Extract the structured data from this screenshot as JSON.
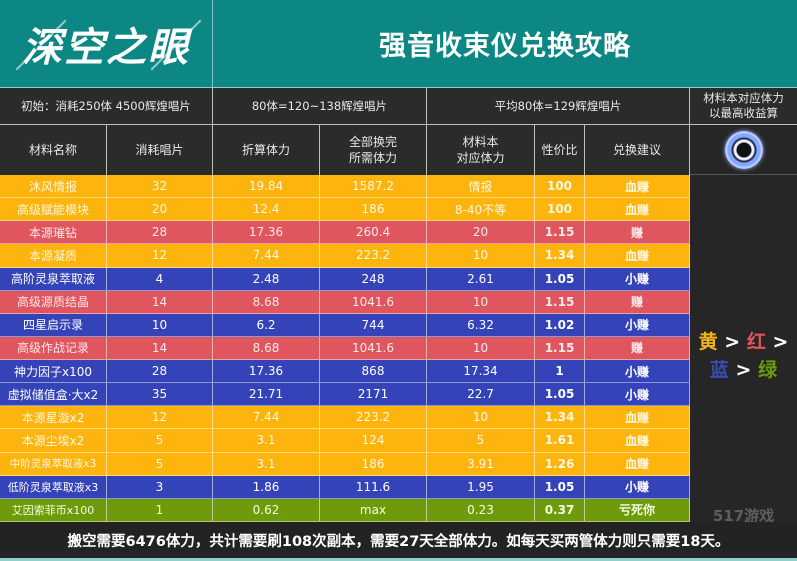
{
  "header": {
    "logo": "深空之眼",
    "title": "强音收束仪兑换攻略"
  },
  "info_row": {
    "cell1": "初始：消耗250体 4500辉煌唱片",
    "cell2": "80体=120~138辉煌唱片",
    "cell3": "平均80体=129辉煌唱片",
    "cell4": "材料本对应体力\n以最高收益算"
  },
  "columns": [
    "材料名称",
    "消耗唱片",
    "折算体力",
    "全部换完\n所需体力",
    "材料本\n对应体力",
    "性价比",
    "兑换建议"
  ],
  "colors": {
    "yellow": "#fdb40d",
    "red": "#e0565e",
    "blue": "#3443b8",
    "green": "#6f9a0b",
    "header_teal": "#0d8783",
    "dark": "#2b2b2b"
  },
  "rows": [
    {
      "color": "yellow",
      "name": "沐风情报",
      "cost": "32",
      "stamina": "19.84",
      "total": "1587.2",
      "dungeon": "情报",
      "ratio": "100",
      "advice": "血赚"
    },
    {
      "color": "yellow",
      "name": "高级赋能模块",
      "cost": "20",
      "stamina": "12.4",
      "total": "186",
      "dungeon": "8-40不等",
      "ratio": "100",
      "advice": "血赚"
    },
    {
      "color": "red",
      "name": "本源璀钻",
      "cost": "28",
      "stamina": "17.36",
      "total": "260.4",
      "dungeon": "20",
      "ratio": "1.15",
      "advice": "赚"
    },
    {
      "color": "yellow",
      "name": "本源凝质",
      "cost": "12",
      "stamina": "7.44",
      "total": "223.2",
      "dungeon": "10",
      "ratio": "1.34",
      "advice": "血赚"
    },
    {
      "color": "blue",
      "name": "高阶灵泉萃取液",
      "cost": "4",
      "stamina": "2.48",
      "total": "248",
      "dungeon": "2.61",
      "ratio": "1.05",
      "advice": "小赚"
    },
    {
      "color": "red",
      "name": "高级源质结晶",
      "cost": "14",
      "stamina": "8.68",
      "total": "1041.6",
      "dungeon": "10",
      "ratio": "1.15",
      "advice": "赚"
    },
    {
      "color": "blue",
      "name": "四星启示录",
      "cost": "10",
      "stamina": "6.2",
      "total": "744",
      "dungeon": "6.32",
      "ratio": "1.02",
      "advice": "小赚"
    },
    {
      "color": "red",
      "name": "高级作战记录",
      "cost": "14",
      "stamina": "8.68",
      "total": "1041.6",
      "dungeon": "10",
      "ratio": "1.15",
      "advice": "赚"
    },
    {
      "color": "blue",
      "name": "神力因子x100",
      "cost": "28",
      "stamina": "17.36",
      "total": "868",
      "dungeon": "17.34",
      "ratio": "1",
      "advice": "小赚"
    },
    {
      "color": "blue",
      "name": "虚拟储值盒·大x2",
      "cost": "35",
      "stamina": "21.71",
      "total": "2171",
      "dungeon": "22.7",
      "ratio": "1.05",
      "advice": "小赚"
    },
    {
      "color": "yellow",
      "name": "本源星漩x2",
      "cost": "12",
      "stamina": "7.44",
      "total": "223.2",
      "dungeon": "10",
      "ratio": "1.34",
      "advice": "血赚"
    },
    {
      "color": "yellow",
      "name": "本源尘埃x2",
      "cost": "5",
      "stamina": "3.1",
      "total": "124",
      "dungeon": "5",
      "ratio": "1.61",
      "advice": "血赚"
    },
    {
      "color": "yellow",
      "name": "中阶灵泉萃取液x3",
      "cost": "5",
      "stamina": "3.1",
      "total": "186",
      "dungeon": "3.91",
      "ratio": "1.26",
      "advice": "血赚"
    },
    {
      "color": "blue",
      "name": "低阶灵泉萃取液x3",
      "cost": "3",
      "stamina": "1.86",
      "total": "111.6",
      "dungeon": "1.95",
      "ratio": "1.05",
      "advice": "小赚"
    },
    {
      "color": "green",
      "name": "艾因索菲币x100",
      "cost": "1",
      "stamina": "0.62",
      "total": "max",
      "dungeon": "0.23",
      "ratio": "0.37",
      "advice": "亏死你"
    }
  ],
  "legend": {
    "yellow": "黄",
    "red": "红",
    "blue": "蓝",
    "green": "绿",
    "sep": ">"
  },
  "side_icon": "orb-icon",
  "footer": "搬空需要6476体力，共计需要刷108次副本，需要27天全部体力。如每天买两管体力则只需要18天。",
  "watermark": "517游戏"
}
